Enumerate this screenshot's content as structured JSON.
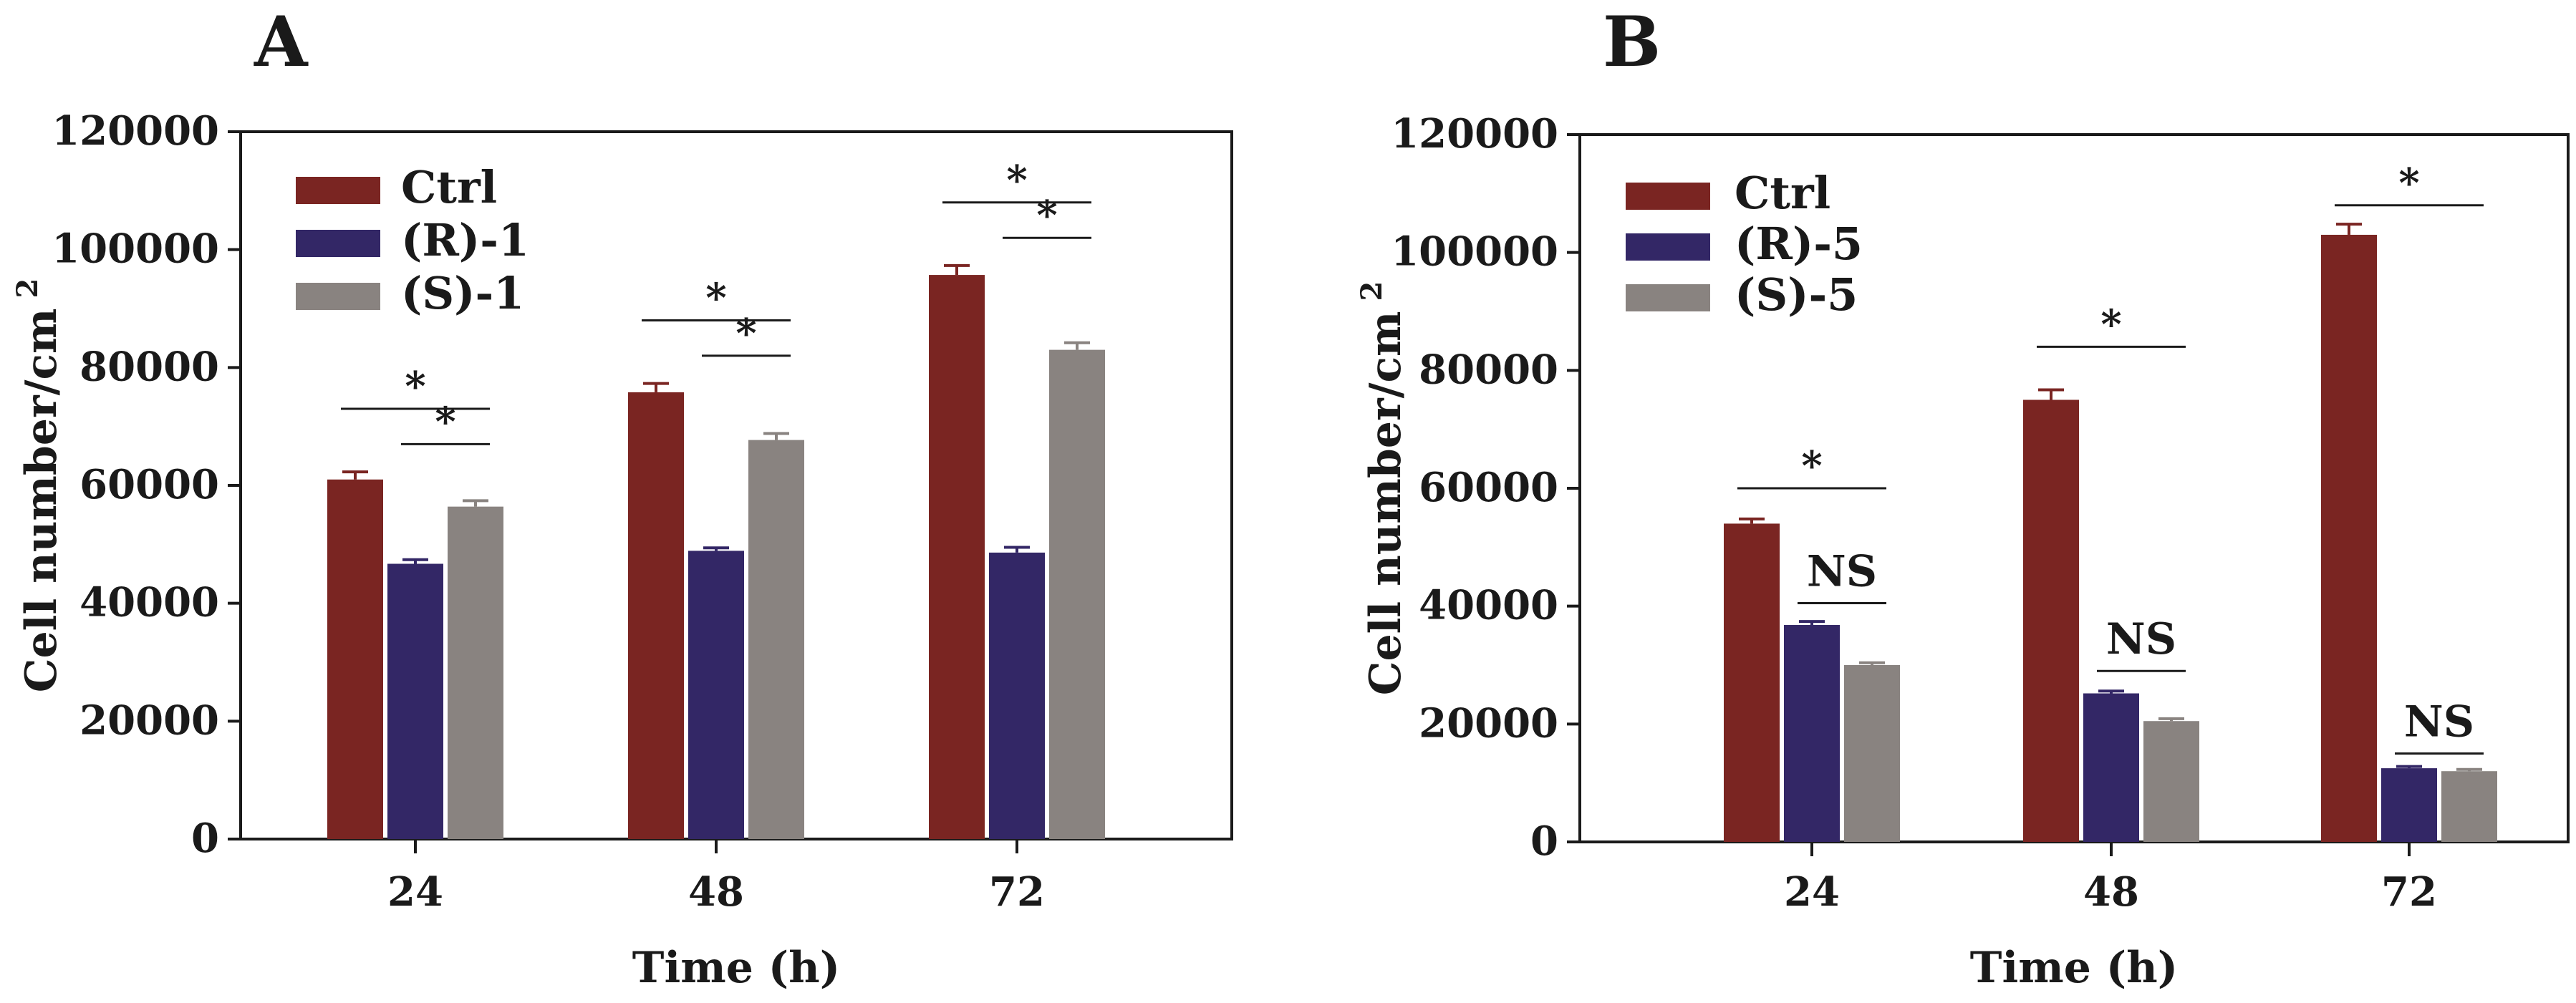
{
  "chart_data": [
    {
      "panel_label": "A",
      "type": "bar",
      "categories": [
        "24",
        "48",
        "72"
      ],
      "xlabel": "Time (h)",
      "ylabel": "Cell number/cm",
      "ylabel_superscript": "2",
      "ylim": [
        0,
        120000
      ],
      "yticks": [
        "0",
        "20000",
        "40000",
        "60000",
        "80000",
        "100000",
        "120000"
      ],
      "grid": false,
      "legend_position": "top-left",
      "series": [
        {
          "name": "Ctrl",
          "color": "#7a2522",
          "values": [
            61000,
            75800,
            95700
          ],
          "errors": [
            1300,
            1500,
            1600
          ]
        },
        {
          "name": "(R)-1",
          "color": "#332766",
          "values": [
            46700,
            48900,
            48600
          ],
          "errors": [
            700,
            500,
            900
          ]
        },
        {
          "name": "(S)-1",
          "color": "#898380",
          "values": [
            56400,
            67700,
            83000
          ],
          "errors": [
            1000,
            1100,
            1200
          ]
        }
      ],
      "annotations": [
        {
          "category": 0,
          "from": 0,
          "to": 2,
          "text": "*",
          "y": 73000
        },
        {
          "category": 0,
          "from": 1,
          "to": 2,
          "text": "*",
          "y": 67000
        },
        {
          "category": 1,
          "from": 0,
          "to": 2,
          "text": "*",
          "y": 88000
        },
        {
          "category": 1,
          "from": 1,
          "to": 2,
          "text": "*",
          "y": 82000
        },
        {
          "category": 2,
          "from": 0,
          "to": 2,
          "text": "*",
          "y": 108000
        },
        {
          "category": 2,
          "from": 1,
          "to": 2,
          "text": "*",
          "y": 102000
        }
      ]
    },
    {
      "panel_label": "B",
      "type": "bar",
      "categories": [
        "24",
        "48",
        "72"
      ],
      "xlabel": "Time (h)",
      "ylabel": "Cell number/cm",
      "ylabel_superscript": "2",
      "ylim": [
        0,
        120000
      ],
      "yticks": [
        "0",
        "20000",
        "40000",
        "60000",
        "80000",
        "100000",
        "120000"
      ],
      "grid": false,
      "legend_position": "top-left",
      "series": [
        {
          "name": "Ctrl",
          "color": "#7a2522",
          "values": [
            54000,
            75000,
            103000
          ],
          "errors": [
            800,
            1700,
            1800
          ]
        },
        {
          "name": "(R)-5",
          "color": "#332766",
          "values": [
            36800,
            25200,
            12500
          ],
          "errors": [
            600,
            400,
            300
          ]
        },
        {
          "name": "(S)-5",
          "color": "#898380",
          "values": [
            30000,
            20500,
            12000
          ],
          "errors": [
            400,
            400,
            300
          ]
        }
      ],
      "annotations": [
        {
          "category": 0,
          "from": 0,
          "to": 2,
          "text": "*",
          "y": 60000
        },
        {
          "category": 0,
          "from": 1,
          "to": 2,
          "text": "NS",
          "y": 40500
        },
        {
          "category": 1,
          "from": 0,
          "to": 2,
          "text": "*",
          "y": 84000
        },
        {
          "category": 1,
          "from": 1,
          "to": 2,
          "text": "NS",
          "y": 29000
        },
        {
          "category": 2,
          "from": 0,
          "to": 2,
          "text": "*",
          "y": 108000
        },
        {
          "category": 2,
          "from": 1,
          "to": 2,
          "text": "NS",
          "y": 15000
        }
      ]
    }
  ]
}
